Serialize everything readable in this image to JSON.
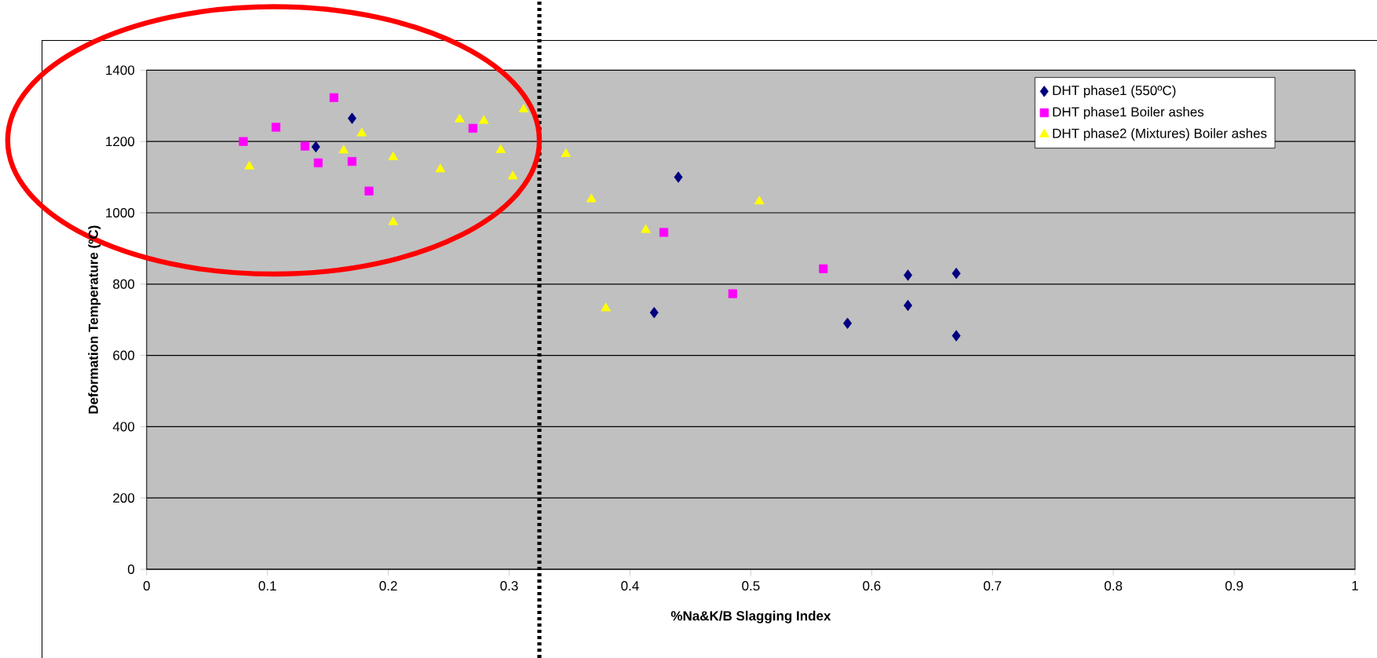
{
  "chart_data": {
    "type": "scatter",
    "xlabel": "%Na&K/B Slagging Index",
    "ylabel": "Deformation Temperature (ºC)",
    "xlim": [
      0,
      1
    ],
    "ylim": [
      0,
      1400
    ],
    "xticks": [
      0,
      0.1,
      0.2,
      0.3,
      0.4,
      0.5,
      0.6,
      0.7,
      0.8,
      0.9,
      1
    ],
    "yticks": [
      0,
      200,
      400,
      600,
      800,
      1000,
      1200,
      1400
    ],
    "grid": "y",
    "legend": "top right",
    "ref_lines": [
      {
        "axis": "x",
        "value": 0.325,
        "color": "#000000",
        "line_style": "dotted"
      }
    ],
    "series": [
      {
        "name": "DHT phase1 (550ºC)",
        "color": "#000080",
        "marker": "diamond",
        "x": [
          0.14,
          0.17,
          0.42,
          0.44,
          0.58,
          0.63,
          0.63,
          0.67,
          0.67
        ],
        "values": [
          1185,
          1265,
          720,
          1100,
          690,
          825,
          740,
          830,
          655
        ]
      },
      {
        "name": "DHT phase1 Boiler ashes",
        "color": "#ff00ff",
        "marker": "square",
        "x": [
          0.08,
          0.107,
          0.131,
          0.142,
          0.155,
          0.17,
          0.184,
          0.27,
          0.428,
          0.485,
          0.56
        ],
        "values": [
          1200,
          1240,
          1187,
          1140,
          1323,
          1144,
          1061,
          1237,
          945,
          773,
          843
        ]
      },
      {
        "name": "DHT phase2 (Mixtures) Boiler ashes",
        "color": "#ffff00",
        "marker": "triangle",
        "x": [
          0.085,
          0.163,
          0.178,
          0.204,
          0.204,
          0.243,
          0.259,
          0.279,
          0.293,
          0.303,
          0.312,
          0.347,
          0.368,
          0.38,
          0.413,
          0.507
        ],
        "values": [
          1130,
          1175,
          1223,
          1156,
          974,
          1122,
          1262,
          1258,
          1176,
          1102,
          1290,
          1165,
          1038,
          732,
          952,
          1032
        ]
      }
    ]
  }
}
